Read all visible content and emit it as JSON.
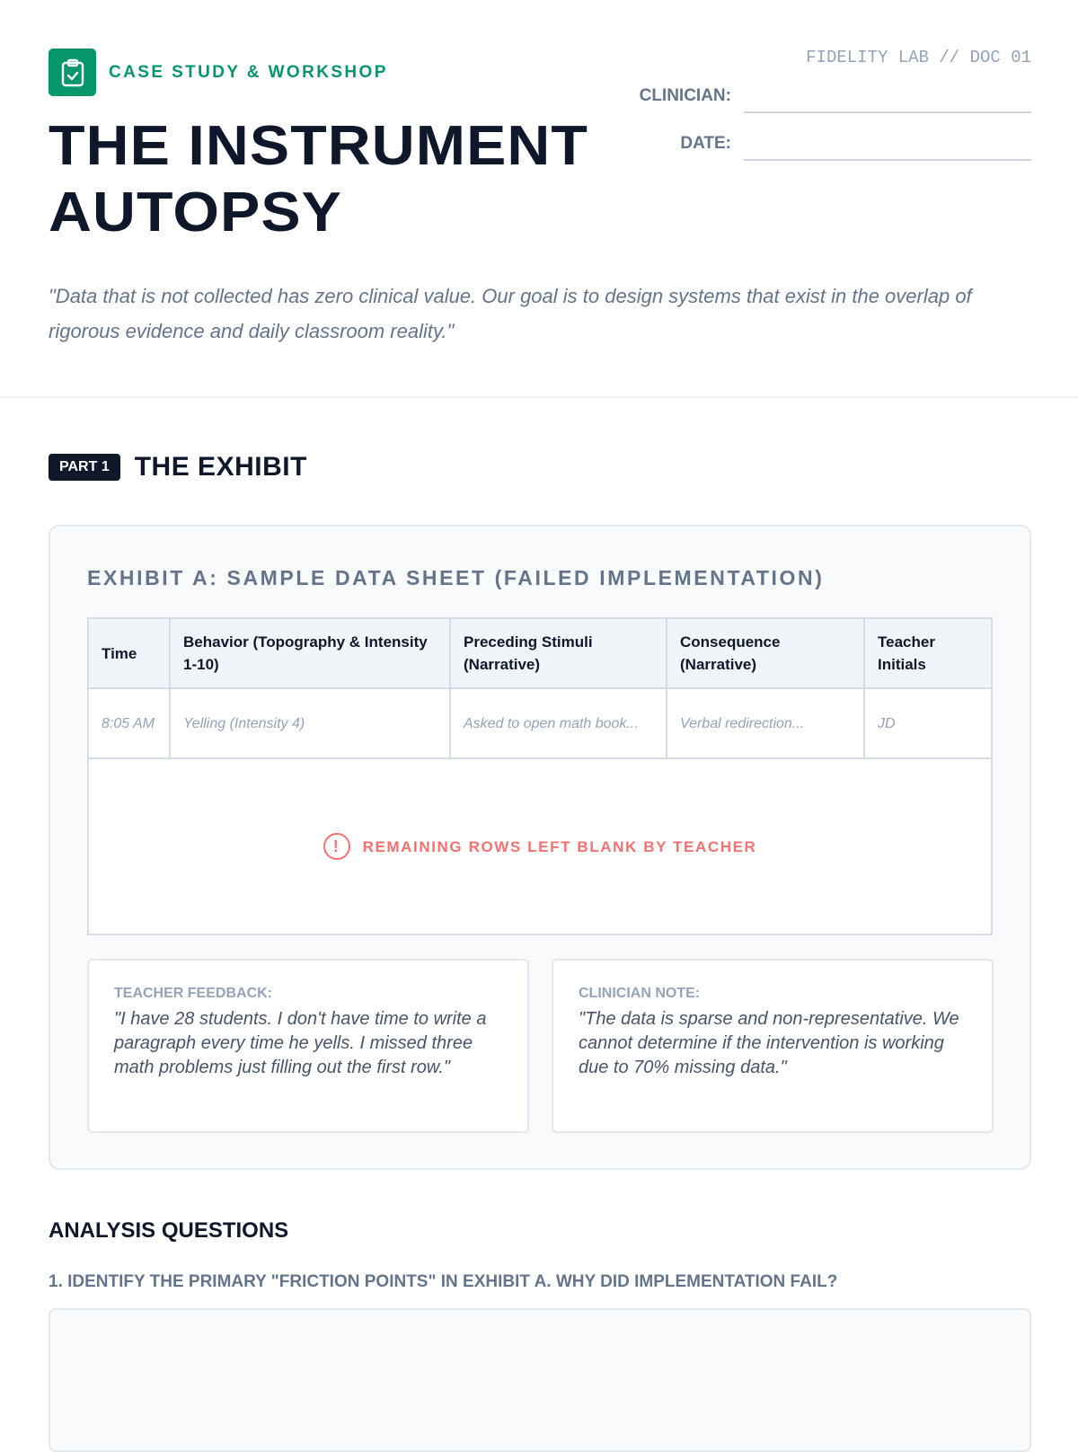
{
  "header": {
    "kicker": "CASE STUDY & WORKSHOP",
    "title_line1": "THE INSTRUMENT",
    "title_line2": "AUTOPSY",
    "doc_id": "FIDELITY LAB // DOC 01",
    "clinician_label": "CLINICIAN:",
    "date_label": "DATE:",
    "quote": "\"Data that is not collected has zero clinical value. Our goal is to design systems that exist in the overlap of rigorous evidence and daily classroom reality.\""
  },
  "part": {
    "tag": "PART 1",
    "title": "THE EXHIBIT"
  },
  "exhibit": {
    "title": "EXHIBIT A: SAMPLE DATA SHEET (FAILED IMPLEMENTATION)",
    "columns": [
      "Time",
      "Behavior (Topography & Intensity 1-10)",
      "Preceding Stimuli (Narrative)",
      "Consequence (Narrative)",
      "Teacher Initials"
    ],
    "row": [
      "8:05 AM",
      "Yelling (Intensity 4)",
      "Asked to open math book...",
      "Verbal redirection...",
      "JD"
    ],
    "blank_notice": "REMAINING ROWS LEFT BLANK BY TEACHER",
    "teacher_label": "TEACHER FEEDBACK:",
    "teacher_text": "\"I have 28 students. I don't have time to write a paragraph every time he yells. I missed three math problems just filling out the first row.\"",
    "clinician_label": "CLINICIAN NOTE:",
    "clinician_text": "\"The data is sparse and non-representative. We cannot determine if the intervention is working due to 70% missing data.\""
  },
  "analysis": {
    "heading": "ANALYSIS QUESTIONS",
    "q1": "1. IDENTIFY THE PRIMARY \"FRICTION POINTS\" IN EXHIBIT A. WHY DID IMPLEMENTATION FAIL?"
  },
  "colors": {
    "accent": "#079669",
    "warning": "#f87171"
  }
}
